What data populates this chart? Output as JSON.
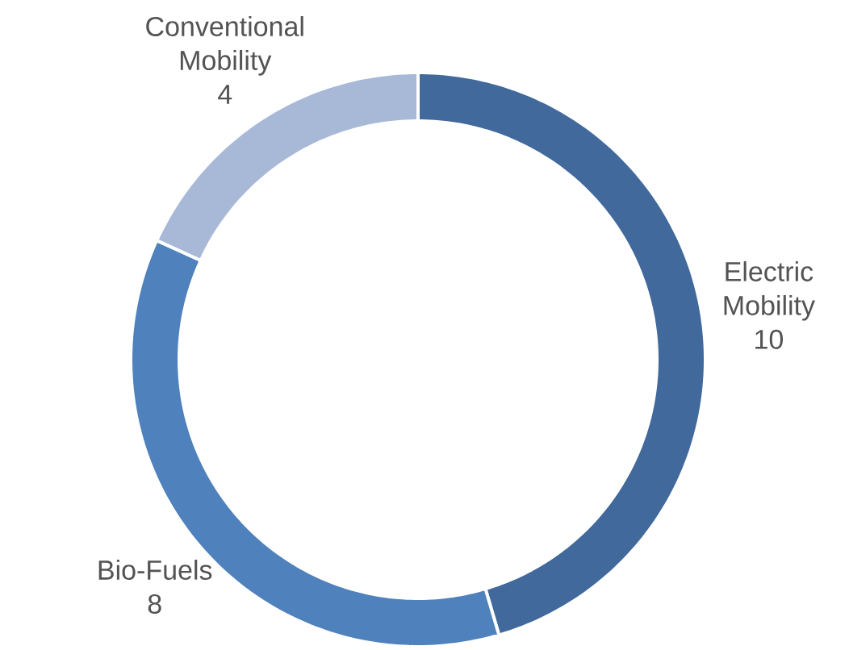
{
  "chart_data": {
    "type": "donut",
    "categories": [
      "Electric Mobility",
      "Bio-Fuels",
      "Conventional Mobility"
    ],
    "values": [
      10,
      8,
      4
    ],
    "colors": [
      "#41699c",
      "#4f81bd",
      "#a8b9d8"
    ],
    "data_labels": true
  }
}
